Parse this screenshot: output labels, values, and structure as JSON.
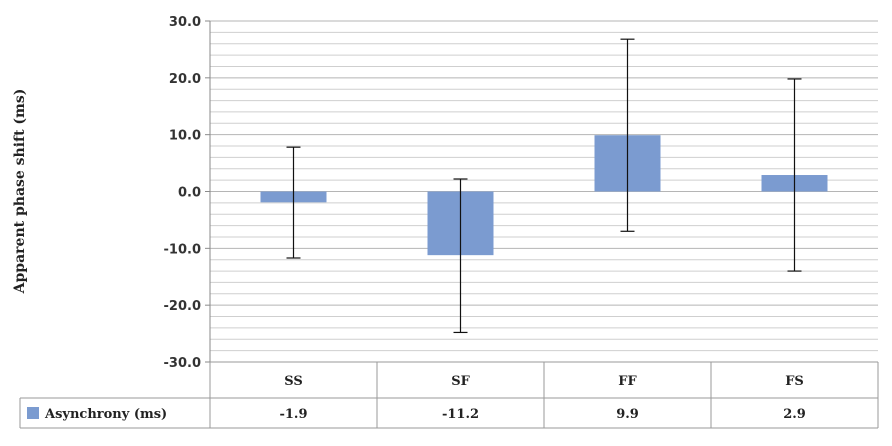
{
  "chart_data": {
    "type": "bar",
    "categories": [
      "SS",
      "SF",
      "FF",
      "FS"
    ],
    "series": [
      {
        "name": "Asynchrony (ms)",
        "values": [
          -1.9,
          -11.2,
          9.9,
          2.9
        ],
        "error_low": [
          -11.7,
          -24.8,
          -7.0,
          -14.0
        ],
        "error_high": [
          7.8,
          2.2,
          26.8,
          19.8
        ],
        "color": "#7b9bd0"
      }
    ],
    "ylabel": "Apparent phase shift (ms)",
    "ylim": [
      -30,
      30
    ],
    "yticks": [
      30,
      20,
      10,
      0,
      -10,
      -20,
      -30
    ],
    "ytick_labels": [
      "30.0",
      "20.0",
      "10.0",
      "0.0",
      "-10.0",
      "-20.0",
      "-30.0"
    ],
    "value_labels": [
      "-1.9",
      "-11.2",
      "9.9",
      "2.9"
    ],
    "grid": true,
    "data_table": true
  }
}
